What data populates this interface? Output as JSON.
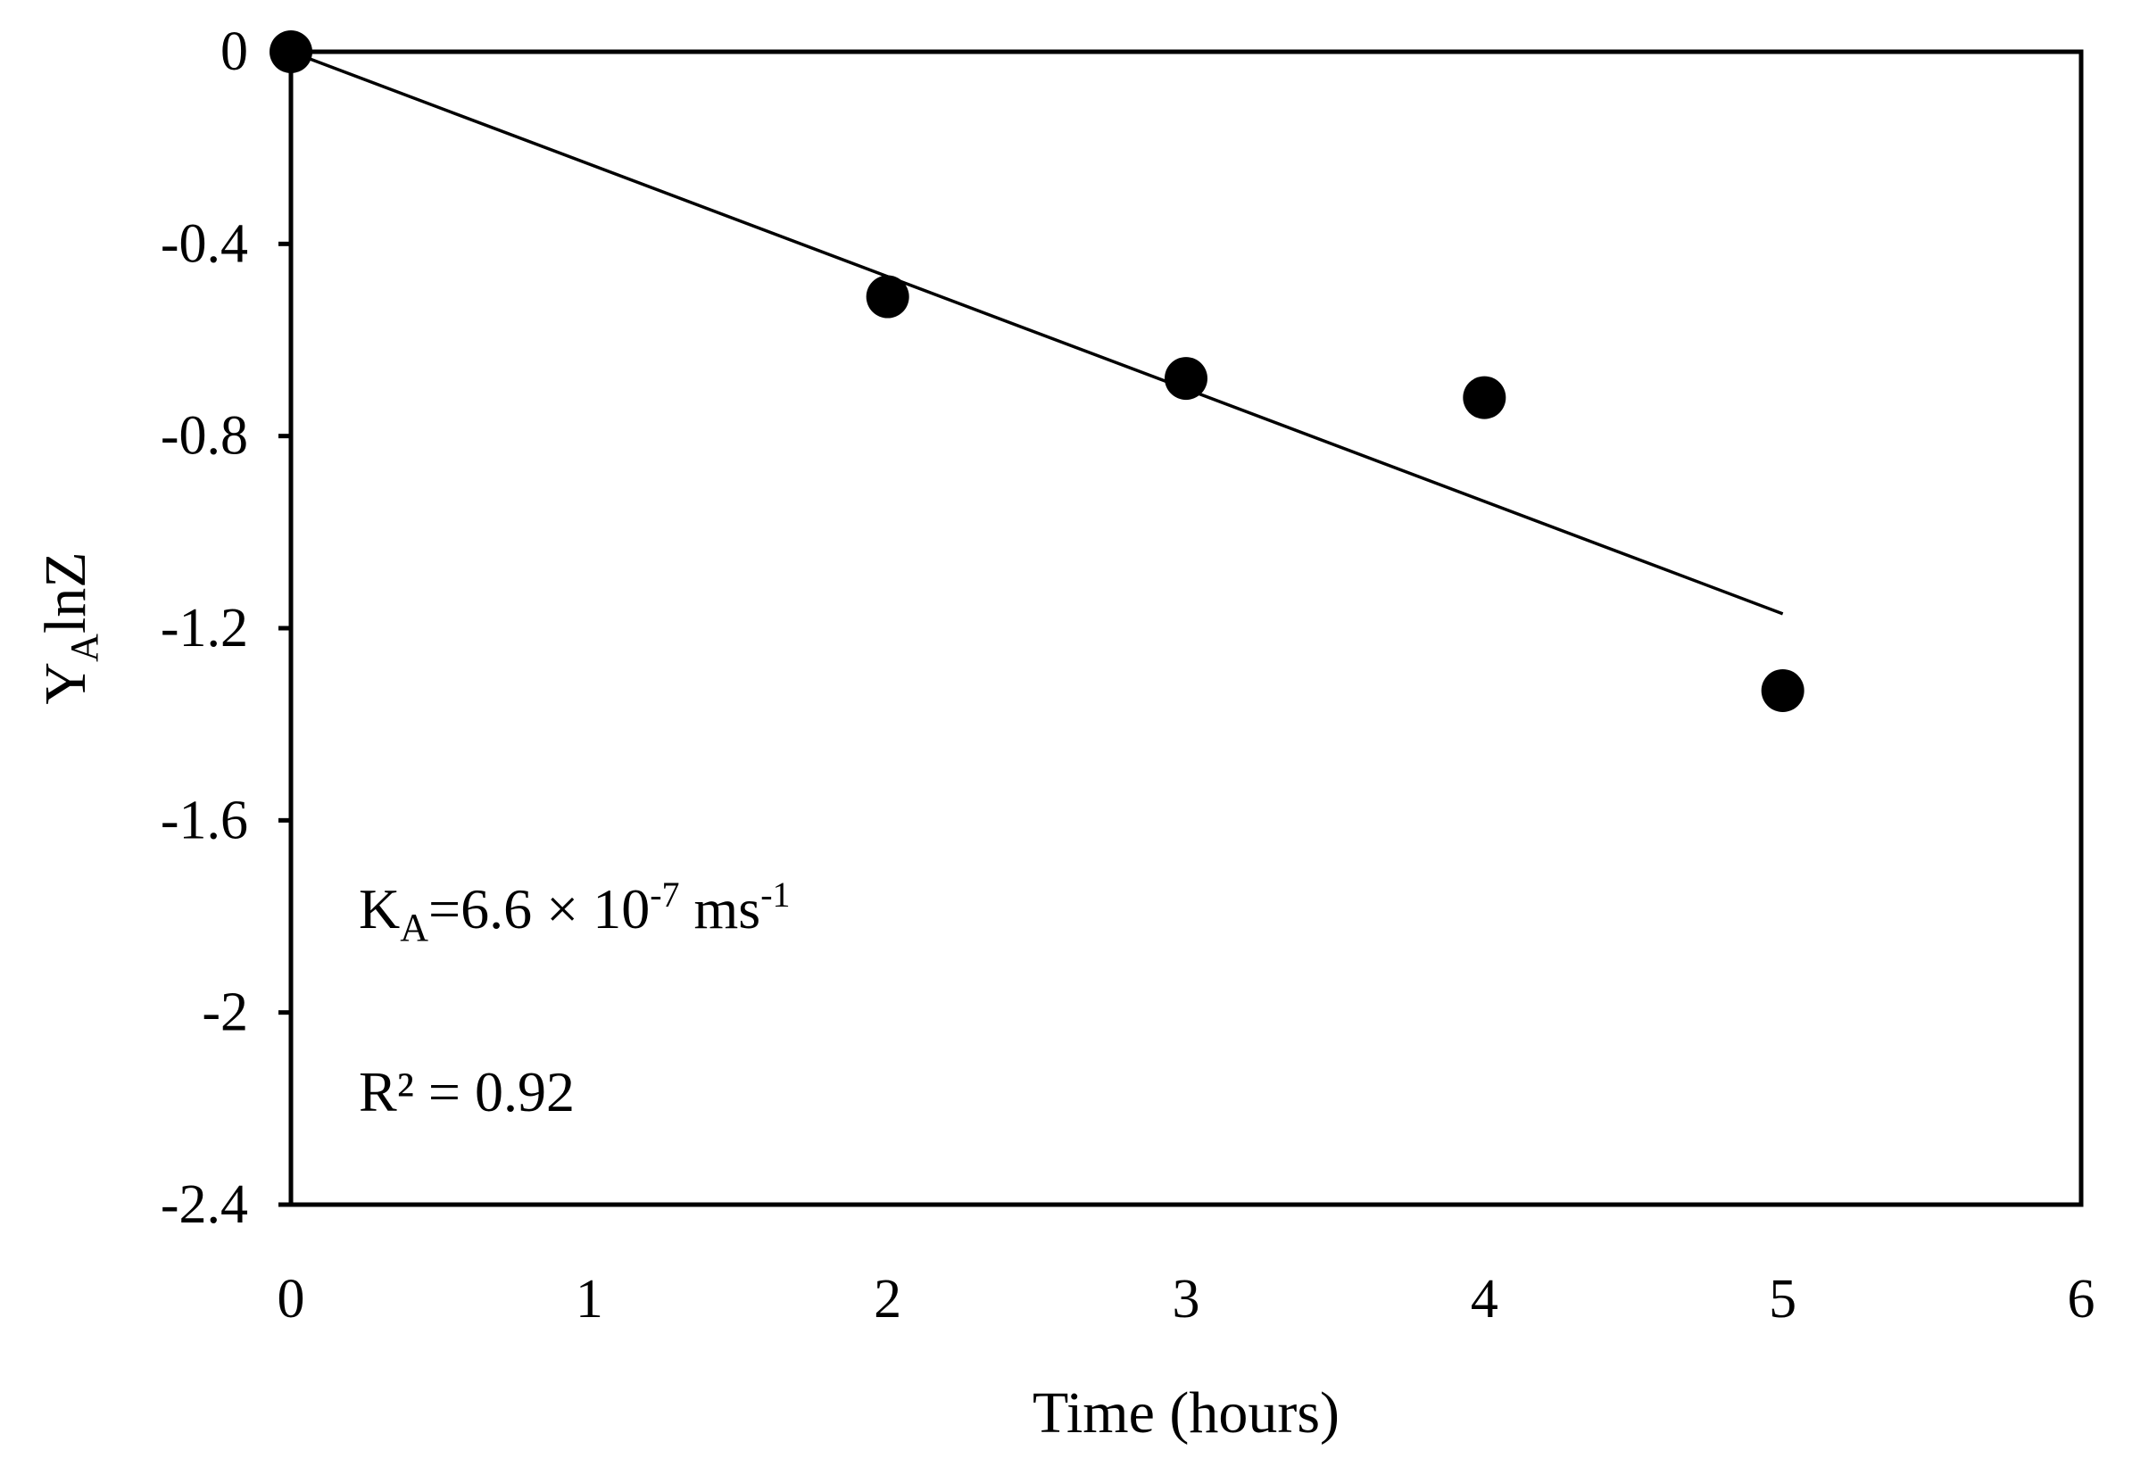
{
  "chart_data": {
    "type": "scatter",
    "xlabel": "Time (hours)",
    "ylabel": {
      "main": "Y",
      "sub": "A",
      "rest": "lnZ"
    },
    "xlim": [
      0,
      6
    ],
    "ylim": [
      -2.4,
      0
    ],
    "x_ticks": [
      0,
      1,
      2,
      3,
      4,
      5,
      6
    ],
    "x_tick_labels": [
      "0",
      "1",
      "2",
      "3",
      "4",
      "5",
      "6"
    ],
    "y_ticks": [
      0,
      -0.4,
      -0.8,
      -1.2,
      -1.6,
      -2,
      -2.4
    ],
    "y_tick_labels": [
      "0",
      "-0.4",
      "-0.8",
      "-1.2",
      "-1.6",
      "-2",
      "-2.4"
    ],
    "series": [
      {
        "x": [
          0,
          2,
          3,
          4,
          5
        ],
        "y": [
          0,
          -0.51,
          -0.68,
          -0.72,
          -1.33
        ],
        "color": "#000000",
        "marker": "circle"
      }
    ],
    "trendline": {
      "x": [
        0,
        5
      ],
      "y": [
        0,
        -1.17
      ]
    },
    "grid": false,
    "annotations": {
      "ka": {
        "k": "K",
        "k_sub": "A",
        "mid": "=6.6 × 10",
        "exp": "-7",
        "unit": " ms",
        "unit_exp": "-1"
      },
      "r2": "R² = 0.92"
    }
  }
}
